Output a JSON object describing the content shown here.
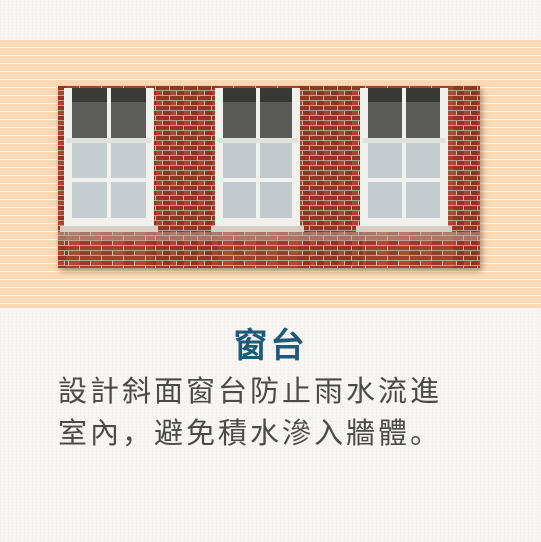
{
  "heading": "窗台",
  "description": {
    "line1": "設計斜面窗台防止雨水流進",
    "line2": "室內，避免積水滲入牆體。"
  },
  "colors": {
    "heading": "#1f5a78",
    "text": "#4a4a4a",
    "brick_pattern": "#fbd9b5",
    "wall_brick": "#9c3c2a",
    "window_frame": "#f2f2ee"
  }
}
